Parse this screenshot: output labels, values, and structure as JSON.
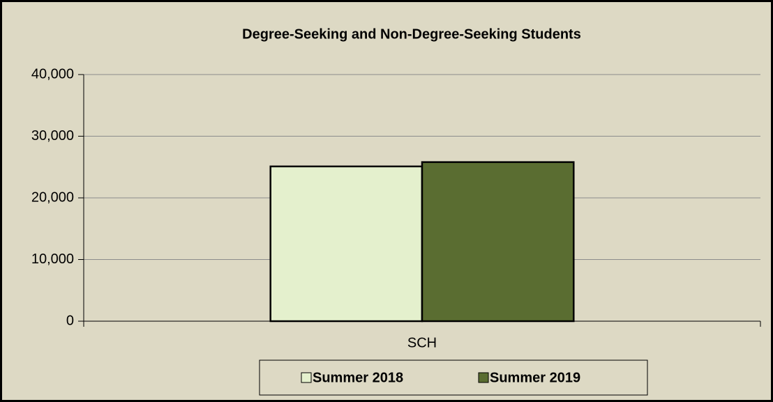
{
  "chart_data": {
    "type": "bar",
    "title": "Degree-Seeking and Non-Degree-Seeking Students",
    "categories": [
      "SCH"
    ],
    "series": [
      {
        "name": "Summer 2018",
        "color": "#e4f0cd",
        "values": [
          25100
        ]
      },
      {
        "name": "Summer 2019",
        "color": "#5a6d31",
        "values": [
          25800
        ]
      }
    ],
    "ylim": [
      0,
      40000
    ],
    "yticks": [
      0,
      {
        "value": 10000,
        "label": "10,000"
      },
      {
        "value": 20000,
        "label": "20,000"
      },
      {
        "value": 30000,
        "label": "30,000"
      },
      {
        "value": 40000,
        "label": "40,000"
      }
    ],
    "grid": true,
    "legend": "bottom"
  }
}
